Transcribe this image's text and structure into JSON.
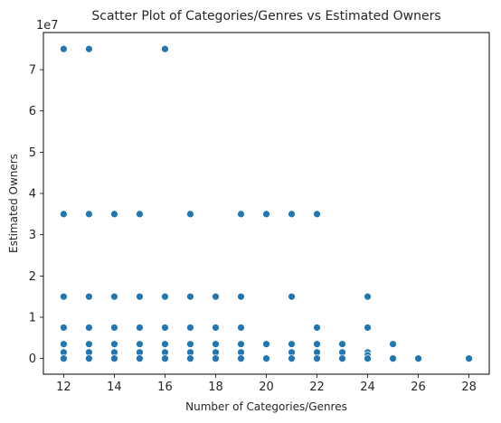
{
  "chart_data": {
    "type": "scatter",
    "title": "Scatter Plot of Categories/Genres vs Estimated Owners",
    "xlabel": "Number of Categories/Genres",
    "ylabel": "Estimated Owners",
    "y_offset_label": "1e7",
    "xlim": [
      11.2,
      28.8
    ],
    "ylim": [
      -0.38,
      7.9
    ],
    "x_ticks": [
      12,
      14,
      16,
      18,
      20,
      22,
      24,
      26,
      28
    ],
    "x_tick_labels": [
      "12",
      "14",
      "16",
      "18",
      "20",
      "22",
      "24",
      "26",
      "28"
    ],
    "y_ticks": [
      0,
      1,
      2,
      3,
      4,
      5,
      6,
      7
    ],
    "y_tick_labels": [
      "0",
      "1",
      "2",
      "3",
      "4",
      "5",
      "6",
      "7"
    ],
    "grid": false,
    "legend": "none",
    "marker_color": "#1f77b4",
    "points": [
      {
        "x": 12,
        "y": 7.5
      },
      {
        "x": 12,
        "y": 3.5
      },
      {
        "x": 12,
        "y": 1.5
      },
      {
        "x": 12,
        "y": 0.75
      },
      {
        "x": 12,
        "y": 0.35
      },
      {
        "x": 12,
        "y": 0.15
      },
      {
        "x": 12,
        "y": 0.0
      },
      {
        "x": 13,
        "y": 7.5
      },
      {
        "x": 13,
        "y": 3.5
      },
      {
        "x": 13,
        "y": 1.5
      },
      {
        "x": 13,
        "y": 0.75
      },
      {
        "x": 13,
        "y": 0.35
      },
      {
        "x": 13,
        "y": 0.15
      },
      {
        "x": 13,
        "y": 0.0
      },
      {
        "x": 14,
        "y": 3.5
      },
      {
        "x": 14,
        "y": 1.5
      },
      {
        "x": 14,
        "y": 0.75
      },
      {
        "x": 14,
        "y": 0.35
      },
      {
        "x": 14,
        "y": 0.15
      },
      {
        "x": 14,
        "y": 0.0
      },
      {
        "x": 15,
        "y": 3.5
      },
      {
        "x": 15,
        "y": 1.5
      },
      {
        "x": 15,
        "y": 0.75
      },
      {
        "x": 15,
        "y": 0.35
      },
      {
        "x": 15,
        "y": 0.15
      },
      {
        "x": 15,
        "y": 0.0
      },
      {
        "x": 16,
        "y": 7.5
      },
      {
        "x": 16,
        "y": 1.5
      },
      {
        "x": 16,
        "y": 0.75
      },
      {
        "x": 16,
        "y": 0.35
      },
      {
        "x": 16,
        "y": 0.15
      },
      {
        "x": 16,
        "y": 0.0
      },
      {
        "x": 17,
        "y": 3.5
      },
      {
        "x": 17,
        "y": 1.5
      },
      {
        "x": 17,
        "y": 0.75
      },
      {
        "x": 17,
        "y": 0.35
      },
      {
        "x": 17,
        "y": 0.15
      },
      {
        "x": 17,
        "y": 0.0
      },
      {
        "x": 18,
        "y": 1.5
      },
      {
        "x": 18,
        "y": 0.75
      },
      {
        "x": 18,
        "y": 0.35
      },
      {
        "x": 18,
        "y": 0.15
      },
      {
        "x": 18,
        "y": 0.0
      },
      {
        "x": 19,
        "y": 3.5
      },
      {
        "x": 19,
        "y": 1.5
      },
      {
        "x": 19,
        "y": 0.75
      },
      {
        "x": 19,
        "y": 0.35
      },
      {
        "x": 19,
        "y": 0.15
      },
      {
        "x": 19,
        "y": 0.0
      },
      {
        "x": 20,
        "y": 3.5
      },
      {
        "x": 20,
        "y": 0.35
      },
      {
        "x": 20,
        "y": 0.0
      },
      {
        "x": 21,
        "y": 3.5
      },
      {
        "x": 21,
        "y": 1.5
      },
      {
        "x": 21,
        "y": 0.35
      },
      {
        "x": 21,
        "y": 0.15
      },
      {
        "x": 21,
        "y": 0.0
      },
      {
        "x": 22,
        "y": 3.5
      },
      {
        "x": 22,
        "y": 0.75
      },
      {
        "x": 22,
        "y": 0.35
      },
      {
        "x": 22,
        "y": 0.15
      },
      {
        "x": 22,
        "y": 0.0
      },
      {
        "x": 23,
        "y": 0.35
      },
      {
        "x": 23,
        "y": 0.15
      },
      {
        "x": 23,
        "y": 0.0
      },
      {
        "x": 24,
        "y": 1.5
      },
      {
        "x": 24,
        "y": 0.75
      },
      {
        "x": 24,
        "y": 0.15
      },
      {
        "x": 24,
        "y": 0.08
      },
      {
        "x": 24,
        "y": 0.0
      },
      {
        "x": 25,
        "y": 0.35
      },
      {
        "x": 25,
        "y": 0.0
      },
      {
        "x": 26,
        "y": 0.0
      },
      {
        "x": 28,
        "y": 0.0
      }
    ]
  }
}
